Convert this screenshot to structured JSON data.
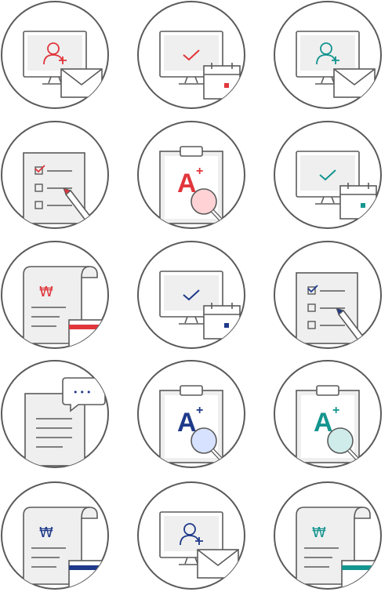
{
  "colors": {
    "red": "#e0363c",
    "navy": "#1f3a8a",
    "teal": "#14958f",
    "stroke": "#5a5a5a",
    "fill": "#efefef"
  },
  "currency_symbol": "₩",
  "grade_text": "A",
  "grade_sup": "+",
  "chat_dots": "•••",
  "icons": [
    {
      "type": "monitor-user-mail",
      "color": "red"
    },
    {
      "type": "monitor-check-calendar",
      "color": "red"
    },
    {
      "type": "monitor-user-mail",
      "color": "teal"
    },
    {
      "type": "checklist-pencil",
      "color": "red"
    },
    {
      "type": "clipboard-grade",
      "color": "red"
    },
    {
      "type": "monitor-check-calendar",
      "color": "teal"
    },
    {
      "type": "bill-card",
      "color": "red"
    },
    {
      "type": "monitor-check-calendar",
      "color": "navy"
    },
    {
      "type": "checklist-pencil",
      "color": "navy"
    },
    {
      "type": "document-chat",
      "color": "navy"
    },
    {
      "type": "clipboard-grade",
      "color": "navy"
    },
    {
      "type": "clipboard-grade",
      "color": "teal"
    },
    {
      "type": "bill-card",
      "color": "navy"
    },
    {
      "type": "monitor-user-mail",
      "color": "navy"
    },
    {
      "type": "bill-card",
      "color": "teal"
    }
  ]
}
